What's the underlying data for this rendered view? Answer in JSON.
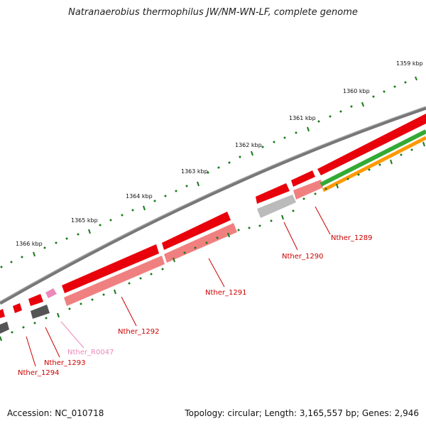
{
  "title": "Natranaerobius thermophilus JW/NM-WN-LF, complete genome",
  "footer": {
    "accession": "Accession: NC_010718",
    "summary": "Topology: circular; Length: 3,165,557 bp; Genes: 2,946"
  },
  "ticks": [
    "1359 kbp",
    "1360 kbp",
    "1361 kbp",
    "1362 kbp",
    "1363 kbp",
    "1364 kbp",
    "1365 kbp",
    "1366 kbp"
  ],
  "genes": [
    {
      "name": "Nther_1289",
      "color": "#cc0000"
    },
    {
      "name": "Nther_1290",
      "color": "#cc0000"
    },
    {
      "name": "Nther_1291",
      "color": "#cc0000"
    },
    {
      "name": "Nther_1292",
      "color": "#cc0000"
    },
    {
      "name": "Nther_R0047",
      "color": "#ee88bb"
    },
    {
      "name": "Nther_1293",
      "color": "#cc0000"
    },
    {
      "name": "Nther_1294",
      "color": "#cc0000"
    }
  ],
  "colors": {
    "backbone": "#7a7a7a",
    "cds_forward": "#e8000b",
    "cds_fill": "#f08080",
    "rrna": "#ee88bb",
    "hit_gray": "#aaaaaa",
    "hit_dark": "#555555",
    "green_track": "#33aa33",
    "orange_track": "#ff9900",
    "tick": "#1a7a1a"
  }
}
